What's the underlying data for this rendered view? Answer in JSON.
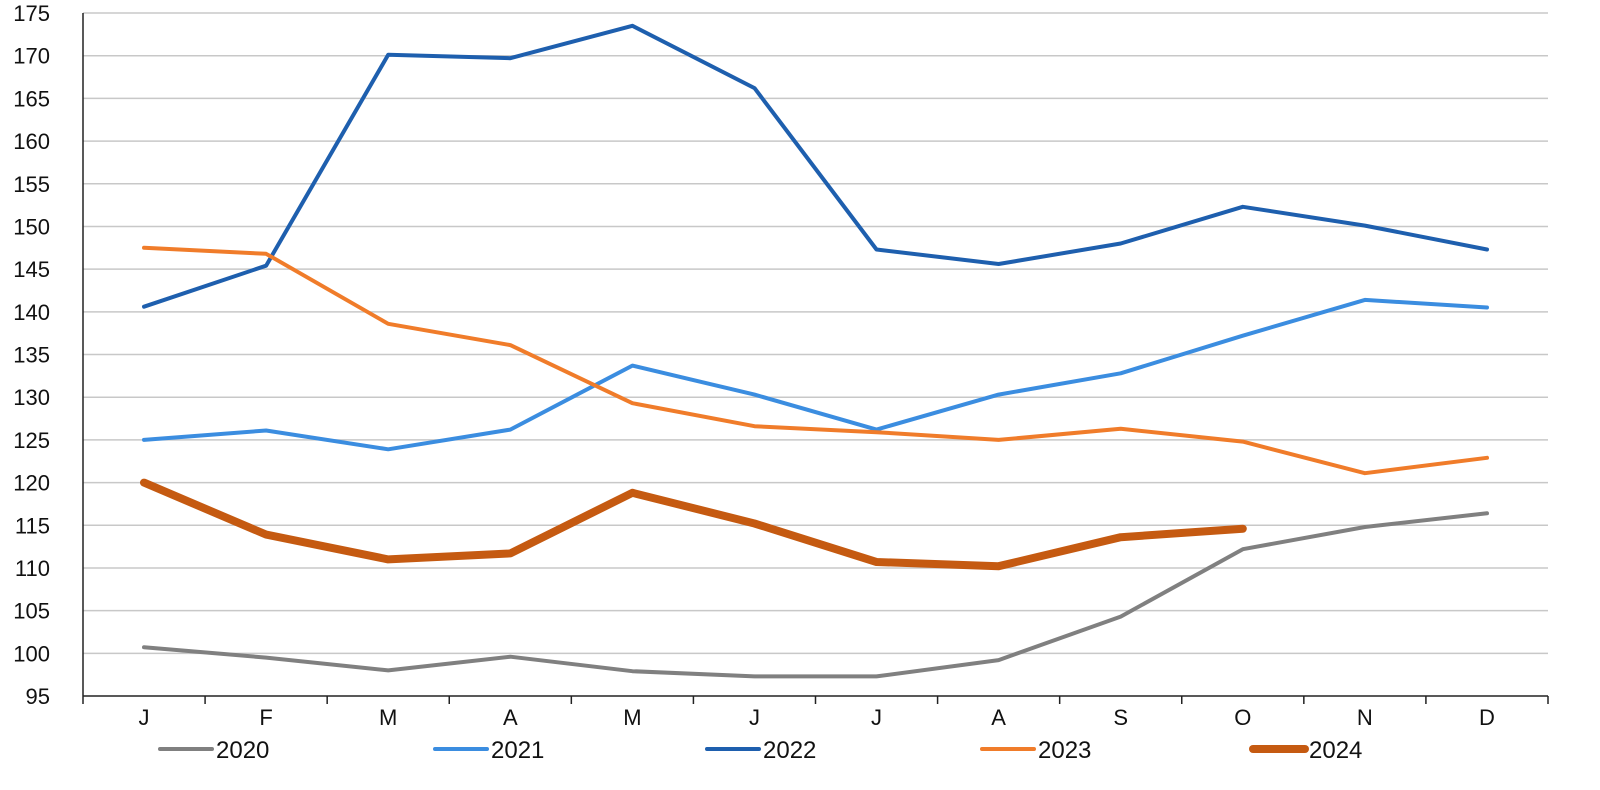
{
  "chart_data": {
    "type": "line",
    "title": "",
    "xlabel": "",
    "ylabel": "",
    "categories": [
      "J",
      "F",
      "M",
      "A",
      "M",
      "J",
      "J",
      "A",
      "S",
      "O",
      "N",
      "D"
    ],
    "ylim": [
      95,
      175
    ],
    "yticks": [
      95,
      100,
      105,
      110,
      115,
      120,
      125,
      130,
      135,
      140,
      145,
      150,
      155,
      160,
      165,
      170,
      175
    ],
    "grid": true,
    "legend": "bottom",
    "series": [
      {
        "name": "2020",
        "color": "#808080",
        "width": 4,
        "values": [
          100.7,
          99.5,
          98.0,
          99.6,
          97.9,
          97.3,
          97.3,
          99.2,
          104.3,
          112.2,
          114.8,
          116.4
        ]
      },
      {
        "name": "2021",
        "color": "#3b8de0",
        "width": 4,
        "values": [
          125.0,
          126.1,
          123.9,
          126.2,
          133.7,
          130.3,
          126.2,
          130.3,
          132.8,
          137.2,
          141.4,
          140.5
        ]
      },
      {
        "name": "2022",
        "color": "#1e5fae",
        "width": 4,
        "values": [
          140.6,
          145.4,
          170.1,
          169.7,
          173.5,
          166.2,
          147.3,
          145.6,
          148.0,
          152.3,
          150.1,
          147.3
        ]
      },
      {
        "name": "2023",
        "color": "#f07c2a",
        "width": 4,
        "values": [
          147.5,
          146.8,
          138.6,
          136.1,
          129.3,
          126.6,
          125.9,
          125.0,
          126.3,
          124.8,
          121.1,
          122.9
        ]
      },
      {
        "name": "2024",
        "color": "#c55a11",
        "width": 8,
        "values": [
          120.0,
          113.9,
          111.0,
          111.7,
          118.8,
          115.2,
          110.7,
          110.2,
          113.6,
          114.6,
          null,
          null
        ]
      }
    ]
  }
}
